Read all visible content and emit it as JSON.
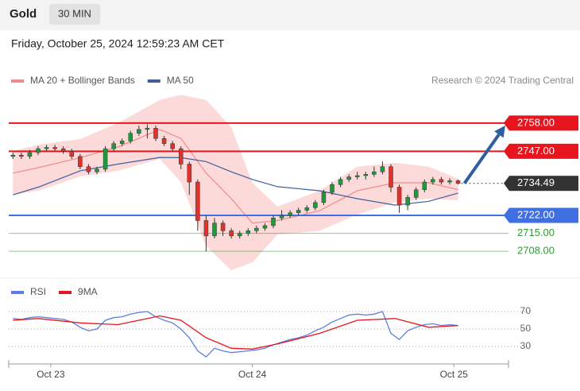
{
  "header": {
    "title": "Gold",
    "timeframe": "30 MIN",
    "datetime": "Friday, October 25, 2024 12:59:23 AM CET"
  },
  "chart_data": [
    {
      "type": "candlestick",
      "credit": "Research © 2024 Trading Central",
      "xlim": [
        -5,
        54.5
      ],
      "ylim": [
        2700,
        2775
      ],
      "up_color": "#1e9a3c",
      "down_color": "#e0322a",
      "x": [
        -4.5,
        -3.5,
        -2.5,
        -1.5,
        -0.5,
        0.5,
        1.5,
        2.5,
        3.5,
        4.5,
        5.5,
        6.5,
        7.5,
        8.5,
        9.5,
        10.5,
        11.5,
        12.5,
        13.5,
        14.5,
        15.5,
        16.5,
        17.5,
        18.5,
        19.5,
        20.5,
        21.5,
        22.5,
        23.5,
        24.5,
        25.5,
        26.5,
        27.5,
        28.5,
        29.5,
        30.5,
        31.5,
        32.5,
        33.5,
        34.5,
        35.5,
        36.5,
        37.5,
        38.5,
        39.5,
        40.5,
        41.5,
        42.5,
        43.5,
        44.5,
        45.5,
        46.5,
        47.5,
        48.5
      ],
      "open": [
        2745,
        2745.5,
        2745,
        2746.5,
        2748,
        2748.5,
        2748,
        2747,
        2745,
        2741,
        2739,
        2740,
        2748,
        2750,
        2751,
        2754,
        2755.5,
        2756,
        2752,
        2750,
        2748,
        2742,
        2735,
        2720,
        2714,
        2719,
        2716,
        2714,
        2715,
        2716,
        2717,
        2718,
        2721,
        2722,
        2723,
        2724,
        2725,
        2727,
        2731,
        2734,
        2736,
        2737,
        2737.5,
        2738,
        2739,
        2741,
        2733,
        2726,
        2729,
        2732,
        2735,
        2736,
        2735,
        2735.5
      ],
      "high": [
        2746.5,
        2746.5,
        2747.5,
        2749,
        2749.5,
        2749.5,
        2749,
        2748,
        2746,
        2742,
        2741,
        2749,
        2751,
        2752,
        2755,
        2757,
        2757.5,
        2757,
        2753,
        2751,
        2749,
        2743,
        2736,
        2722,
        2721,
        2720,
        2717,
        2716,
        2717,
        2718,
        2719,
        2722,
        2724,
        2724,
        2725,
        2726,
        2728,
        2732,
        2735,
        2737,
        2738,
        2739,
        2739,
        2741,
        2743,
        2742,
        2734,
        2730,
        2733,
        2736,
        2737,
        2737,
        2736.5,
        2736
      ],
      "low": [
        2744,
        2744,
        2744,
        2745.5,
        2747,
        2747,
        2746,
        2744,
        2740,
        2738,
        2738,
        2739,
        2747,
        2749,
        2750,
        2753,
        2752,
        2751,
        2749,
        2747,
        2740,
        2730,
        2716,
        2708,
        2713,
        2714,
        2713,
        2713,
        2714,
        2715,
        2716,
        2717,
        2720,
        2721,
        2722,
        2723,
        2724,
        2726,
        2730,
        2733,
        2735,
        2736,
        2736,
        2737,
        2738,
        2731,
        2723,
        2724,
        2728,
        2731,
        2734,
        2734,
        2734,
        2734
      ],
      "close": [
        2745.5,
        2745,
        2746.5,
        2748,
        2748.5,
        2748,
        2747,
        2745,
        2741,
        2739,
        2740,
        2748,
        2750,
        2751,
        2754,
        2755.5,
        2756,
        2752,
        2750,
        2748,
        2742,
        2735,
        2720,
        2714,
        2719,
        2716,
        2714,
        2715,
        2716,
        2717,
        2718,
        2721,
        2722,
        2723,
        2724,
        2725,
        2727,
        2731,
        2734,
        2736,
        2737,
        2737.5,
        2738,
        2739,
        2741,
        2733,
        2726,
        2729,
        2732,
        2735,
        2736,
        2735,
        2735.5,
        2734.5
      ],
      "series": [
        {
          "name": "MA 20 + Bollinger Bands",
          "color": "#f28b8b",
          "band_color": "#fbd3d3",
          "x": [
            -4.5,
            -1.5,
            3.5,
            8,
            13,
            15.5,
            18.5,
            21.5,
            24,
            27,
            32,
            36.5,
            41,
            45,
            48.5
          ],
          "values": [
            2738.5,
            2740.6,
            2744.5,
            2748.7,
            2755.5,
            2752,
            2738.5,
            2728.5,
            2719,
            2720,
            2723.8,
            2731.6,
            2734.7,
            2734.7,
            2732
          ],
          "upper": [
            2747,
            2749.6,
            2751.8,
            2758,
            2767,
            2769,
            2767,
            2756.4,
            2734.7,
            2725.4,
            2731.6,
            2741,
            2742.5,
            2741,
            2736.3
          ],
          "lower": [
            2730,
            2731.6,
            2737.2,
            2739.4,
            2744,
            2735,
            2710,
            2700.6,
            2703.7,
            2714.5,
            2716,
            2722.3,
            2727,
            2728.5,
            2727.9
          ]
        },
        {
          "name": "MA 50",
          "color": "#3d5f9c",
          "x": [
            -4.5,
            -1.5,
            3.5,
            8,
            13,
            15.5,
            18.5,
            21.5,
            24,
            27,
            32,
            36.5,
            41,
            45,
            48.5
          ],
          "values": [
            2730,
            2733,
            2739.4,
            2742,
            2744.6,
            2744.5,
            2743,
            2739,
            2736,
            2733.2,
            2731.6,
            2728.5,
            2726,
            2727.5,
            2730.7
          ]
        }
      ],
      "levels": [
        {
          "value": 2758,
          "label": "2758.00",
          "color": "#e8141e",
          "style": "box"
        },
        {
          "value": 2747,
          "label": "2747.00",
          "color": "#e8141e",
          "style": "box"
        },
        {
          "value": 2734.49,
          "label": "2734.49",
          "color": "#333333",
          "style": "current"
        },
        {
          "value": 2722,
          "label": "2722.00",
          "color": "#3f6fe0",
          "style": "box"
        },
        {
          "value": 2715,
          "label": "2715.00",
          "color": "#2e9e2e",
          "style": "text"
        },
        {
          "value": 2708,
          "label": "2708.00",
          "color": "#2e9e2e",
          "style": "text"
        }
      ],
      "forecast_color": "#2f5f9e"
    },
    {
      "type": "line",
      "xlim": [
        -5,
        54.5
      ],
      "ylim": [
        10,
        80
      ],
      "yticks": [
        70,
        50,
        30
      ],
      "grid": true,
      "xticks": [
        {
          "value": 0,
          "label": "Oct 23"
        },
        {
          "value": 24,
          "label": "Oct 24"
        },
        {
          "value": 48,
          "label": "Oct 25"
        }
      ],
      "series": [
        {
          "name": "RSI",
          "color": "#5b7fe0",
          "x": [
            -4.5,
            -3.5,
            -2.5,
            -1.5,
            -0.5,
            0.5,
            1.5,
            2.5,
            3.5,
            4.5,
            5.5,
            6.5,
            7.5,
            8.5,
            9.5,
            10.5,
            11.5,
            12.5,
            13.5,
            14.5,
            15.5,
            16.5,
            17.5,
            18.5,
            19.5,
            20.5,
            21.5,
            22.5,
            23.5,
            24.5,
            25.5,
            26.5,
            27.5,
            28.5,
            29.5,
            30.5,
            31.5,
            32.5,
            33.5,
            34.5,
            35.5,
            36.5,
            37.5,
            38.5,
            39.5,
            40.5,
            41.5,
            42.5,
            43.5,
            44.5,
            45.5,
            46.5,
            47.5,
            48.5
          ],
          "values": [
            62,
            61,
            63,
            64,
            63,
            62,
            61,
            58,
            52,
            48,
            50,
            60,
            63,
            64,
            67,
            69,
            70,
            64,
            60,
            57,
            50,
            40,
            25,
            18,
            28,
            25,
            23,
            24,
            25,
            26,
            28,
            32,
            35,
            38,
            40,
            43,
            48,
            52,
            58,
            62,
            66,
            67,
            66,
            67,
            70,
            45,
            38,
            48,
            52,
            55,
            56,
            54,
            55,
            54
          ]
        },
        {
          "name": "9MA",
          "color": "#e8141e",
          "x": [
            -4.5,
            -1.5,
            3.5,
            8,
            13,
            15.5,
            18.5,
            21.5,
            24,
            27,
            32,
            36.5,
            41,
            45,
            48.5
          ],
          "values": [
            60,
            62,
            57,
            55,
            65,
            60,
            40,
            28,
            27,
            33,
            45,
            60,
            62,
            52,
            54
          ]
        }
      ]
    }
  ]
}
